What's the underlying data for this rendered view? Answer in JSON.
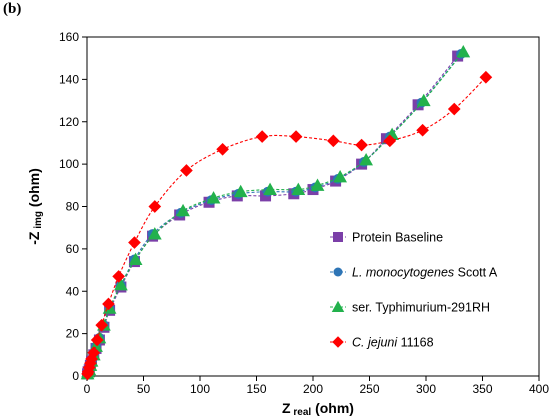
{
  "panel_label": "(b)",
  "chart_data": {
    "type": "scatter",
    "title": "",
    "xlabel": {
      "main": "Z",
      "sub": "real",
      "unit": " (ohm)"
    },
    "ylabel": {
      "main": "-Z",
      "sub": "img",
      "unit": " (ohm)"
    },
    "xlim": [
      0,
      400
    ],
    "ylim": [
      0,
      160
    ],
    "xticks": [
      0,
      50,
      100,
      150,
      200,
      250,
      300,
      350,
      400
    ],
    "yticks": [
      0,
      20,
      40,
      60,
      80,
      100,
      120,
      140,
      160
    ],
    "grid": false,
    "legend_position": "center-right",
    "series": [
      {
        "name": "Protein Baseline",
        "name_parts": [
          {
            "t": "Protein Baseline",
            "i": false
          }
        ],
        "color": "#7b3fa8",
        "marker": "square",
        "x": [
          0.5,
          1,
          2,
          3,
          4,
          6,
          8,
          11,
          15,
          20,
          30,
          42,
          58,
          82,
          108,
          133,
          158,
          183,
          200,
          220,
          243,
          265,
          293,
          328
        ],
        "y": [
          1,
          2,
          3,
          5,
          7,
          10,
          13,
          17,
          23,
          31,
          42,
          54,
          66,
          76,
          82,
          85,
          85,
          86,
          88,
          92,
          100,
          112,
          128,
          151
        ]
      },
      {
        "name": "L. monocytogenes Scott A",
        "name_parts": [
          {
            "t": "L. monocytogenes",
            "i": true
          },
          {
            "t": " Scott A",
            "i": false
          }
        ],
        "color": "#2e75b6",
        "marker": "circle",
        "x": [
          0.5,
          1,
          2,
          3,
          4,
          6,
          8,
          11,
          15,
          20,
          30,
          42,
          58,
          83,
          110,
          134,
          160,
          185,
          202,
          222,
          245,
          268,
          296,
          331
        ],
        "y": [
          1,
          2,
          3,
          5,
          7,
          10,
          14,
          18,
          24,
          32,
          43,
          55,
          67,
          77,
          83,
          86,
          87,
          87,
          89,
          93,
          101,
          113,
          129,
          152
        ]
      },
      {
        "name": "ser. Typhimurium-291RH",
        "name_parts": [
          {
            "t": "ser. Typhimurium-291RH",
            "i": false
          }
        ],
        "color": "#22b14c",
        "marker": "triangle",
        "x": [
          0.5,
          1,
          2,
          3,
          4,
          6,
          8,
          11,
          15,
          20,
          30,
          43,
          60,
          85,
          112,
          136,
          162,
          187,
          204,
          224,
          247,
          270,
          298,
          333
        ],
        "y": [
          1,
          2,
          3,
          5,
          7,
          10,
          14,
          18,
          24,
          32,
          43,
          55,
          67,
          78,
          84,
          87,
          88,
          88,
          90,
          94,
          102,
          114,
          130,
          153
        ]
      },
      {
        "name": "C. jejuni 11168",
        "name_parts": [
          {
            "t": "C. jejuni",
            "i": true
          },
          {
            "t": " 11168",
            "i": false
          }
        ],
        "color": "#ff0000",
        "marker": "diamond",
        "x": [
          0.5,
          1,
          2,
          3,
          4,
          6,
          9,
          13,
          19,
          28,
          42,
          60,
          88,
          120,
          155,
          185,
          218,
          243,
          268,
          297,
          325,
          353
        ],
        "y": [
          1,
          2,
          4,
          6,
          8,
          11,
          17,
          24,
          34,
          47,
          63,
          80,
          97,
          107,
          113,
          113,
          111,
          109,
          111,
          116,
          126,
          141
        ]
      }
    ]
  }
}
